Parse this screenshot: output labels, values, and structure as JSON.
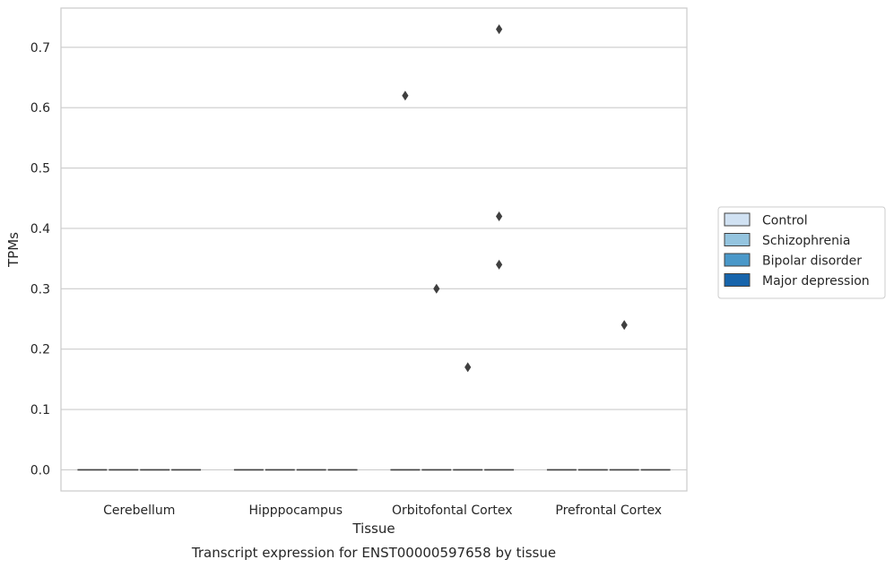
{
  "chart_data": {
    "type": "box",
    "title": "",
    "caption": "Transcript expression for ENST00000597658 by tissue",
    "xlabel": "Tissue",
    "ylabel": "TPMs",
    "ylim": [
      -0.035,
      0.765
    ],
    "yticks": [
      0.0,
      0.1,
      0.2,
      0.3,
      0.4,
      0.5,
      0.6,
      0.7
    ],
    "ytick_labels": [
      "0.0",
      "0.1",
      "0.2",
      "0.3",
      "0.4",
      "0.5",
      "0.6",
      "0.7"
    ],
    "categories": [
      "Cerebellum",
      "Hipppocampus",
      "Orbitofontal Cortex",
      "Prefrontal Cortex"
    ],
    "grid": true,
    "legend_position": "right",
    "series": [
      {
        "name": "Control",
        "color": "#d0e1f2",
        "medians": [
          0.0,
          0.0,
          0.0,
          0.0
        ],
        "outliers": [
          [],
          [],
          [
            0.62
          ],
          []
        ]
      },
      {
        "name": "Schizophrenia",
        "color": "#94c4df",
        "medians": [
          0.0,
          0.0,
          0.0,
          0.0
        ],
        "outliers": [
          [],
          [],
          [
            0.3
          ],
          []
        ]
      },
      {
        "name": "Bipolar disorder",
        "color": "#4a98c9",
        "medians": [
          0.0,
          0.0,
          0.0,
          0.0
        ],
        "outliers": [
          [],
          [],
          [
            0.17
          ],
          [
            0.24
          ]
        ]
      },
      {
        "name": "Major depression",
        "color": "#1764ab",
        "medians": [
          0.0,
          0.0,
          0.0,
          0.0
        ],
        "outliers": [
          [],
          [],
          [
            0.73,
            0.42,
            0.34
          ],
          []
        ]
      }
    ]
  }
}
